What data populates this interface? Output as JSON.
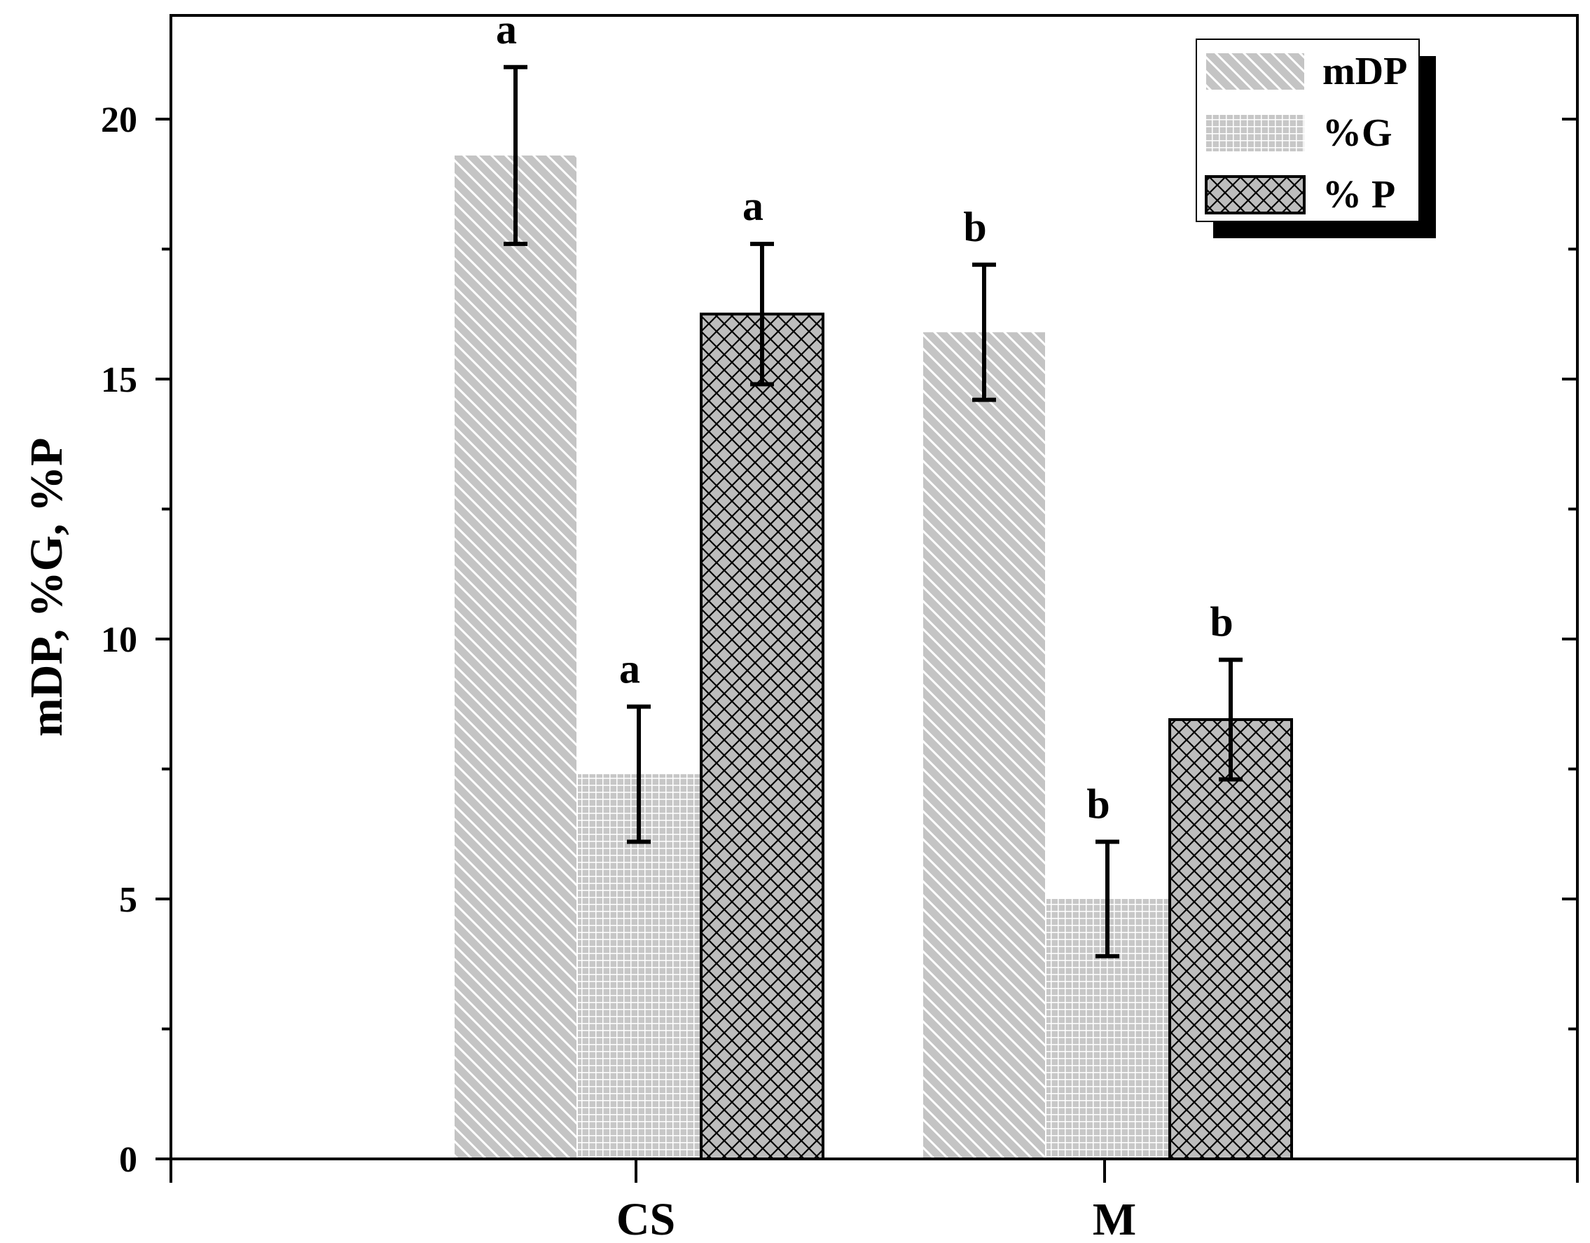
{
  "chart_data": {
    "type": "bar",
    "title": "",
    "xlabel": "",
    "ylabel": "mDP, %G, %P",
    "categories": [
      "CS",
      "M"
    ],
    "ylim": [
      0,
      22
    ],
    "yticks": [
      0,
      5,
      10,
      15,
      20
    ],
    "y_minor_ticks": [
      2.5,
      7.5,
      12.5,
      17.5
    ],
    "grid": false,
    "legend_position": "top-right",
    "series": [
      {
        "name": "mDP",
        "pattern": "diagonal-hatch-light",
        "color": "#c4c4c4",
        "values": [
          19.3,
          15.9
        ],
        "errors": [
          1.7,
          1.3
        ],
        "labels": [
          "a",
          "b"
        ]
      },
      {
        "name": "%G",
        "pattern": "grid-light",
        "color": "#c4c4c4",
        "values": [
          7.4,
          5.0
        ],
        "errors": [
          1.3,
          1.1
        ],
        "labels": [
          "a",
          "b"
        ]
      },
      {
        "name": "% P",
        "pattern": "crosshatch-outlined",
        "color": "#bdbdbd",
        "values": [
          16.25,
          8.45
        ],
        "errors": [
          1.35,
          1.15
        ],
        "labels": [
          "a",
          "b"
        ]
      }
    ]
  }
}
